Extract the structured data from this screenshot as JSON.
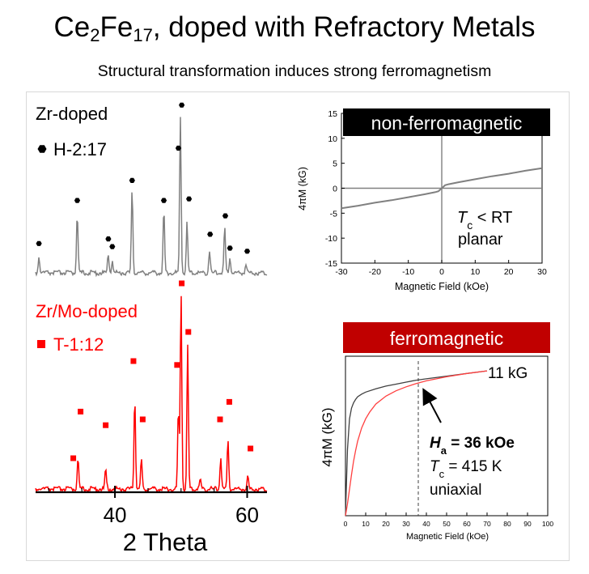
{
  "title": {
    "main_prefix": "Ce",
    "sub1": "2",
    "mid": "Fe",
    "sub2": "17",
    "suffix": ", doped with Refractory Metals"
  },
  "subtitle": "Structural transformation induces strong ferromagnetism",
  "chart_data": [
    {
      "type": "line",
      "panel": "xrd",
      "xlabel": "2 Theta",
      "xlim": [
        28,
        63
      ],
      "xticks": [
        40,
        60
      ],
      "minor_xticks": [
        30,
        35,
        45,
        50,
        55
      ],
      "series": [
        {
          "name": "Zr-doped",
          "color": "#808080",
          "legend_label": "H-2:17",
          "legend_marker": "black hexagon",
          "peaks": [
            {
              "x": 28.5,
              "h": 0.1
            },
            {
              "x": 34.3,
              "h": 0.39
            },
            {
              "x": 39.0,
              "h": 0.12
            },
            {
              "x": 39.6,
              "h": 0.08
            },
            {
              "x": 42.6,
              "h": 0.53
            },
            {
              "x": 47.4,
              "h": 0.4
            },
            {
              "x": 49.9,
              "h": 1.0
            },
            {
              "x": 50.9,
              "h": 0.32
            },
            {
              "x": 54.3,
              "h": 0.14
            },
            {
              "x": 56.6,
              "h": 0.29
            },
            {
              "x": 57.4,
              "h": 0.1
            },
            {
              "x": 59.8,
              "h": 0.06
            }
          ],
          "markers": [
            {
              "x": 28.5,
              "y": 0.18
            },
            {
              "x": 34.3,
              "y": 0.46
            },
            {
              "x": 39.0,
              "y": 0.21
            },
            {
              "x": 39.6,
              "y": 0.16
            },
            {
              "x": 42.6,
              "y": 0.59
            },
            {
              "x": 47.4,
              "y": 0.46
            },
            {
              "x": 49.6,
              "y": 0.8
            },
            {
              "x": 50.1,
              "y": 1.08
            },
            {
              "x": 51.2,
              "y": 0.47
            },
            {
              "x": 54.4,
              "y": 0.24
            },
            {
              "x": 56.7,
              "y": 0.36
            },
            {
              "x": 57.4,
              "y": 0.15
            },
            {
              "x": 60.0,
              "y": 0.13
            }
          ]
        },
        {
          "name": "Zr/Mo-doped",
          "color": "#ff0000",
          "legend_label": "T-1:12",
          "legend_marker": "red square",
          "peaks": [
            {
              "x": 34.4,
              "h": 0.16
            },
            {
              "x": 38.6,
              "h": 0.1
            },
            {
              "x": 43.0,
              "h": 0.47
            },
            {
              "x": 44.0,
              "h": 0.15
            },
            {
              "x": 49.6,
              "h": 0.4
            },
            {
              "x": 50.0,
              "h": 1.0
            },
            {
              "x": 51.0,
              "h": 0.72
            },
            {
              "x": 52.9,
              "h": 0.05
            },
            {
              "x": 56.0,
              "h": 0.16
            },
            {
              "x": 57.1,
              "h": 0.25
            },
            {
              "x": 60.1,
              "h": 0.06
            }
          ],
          "markers": [
            {
              "x": 33.7,
              "y": 0.15
            },
            {
              "x": 34.8,
              "y": 0.39
            },
            {
              "x": 38.6,
              "y": 0.32
            },
            {
              "x": 42.8,
              "y": 0.65
            },
            {
              "x": 44.2,
              "y": 0.35
            },
            {
              "x": 49.4,
              "y": 0.63
            },
            {
              "x": 50.1,
              "y": 1.05
            },
            {
              "x": 51.1,
              "y": 0.8
            },
            {
              "x": 55.9,
              "y": 0.35
            },
            {
              "x": 57.3,
              "y": 0.44
            },
            {
              "x": 60.5,
              "y": 0.2
            }
          ]
        }
      ]
    },
    {
      "type": "line",
      "panel": "mh-top",
      "banner": "non-ferromagnetic",
      "banner_color": "#000000",
      "xlabel": "Magnetic Field (kOe)",
      "ylabel": "4πM (kG)",
      "xlim": [
        -30,
        30
      ],
      "ylim": [
        -15,
        15
      ],
      "xticks": [
        -30,
        -20,
        -10,
        0,
        10,
        20,
        30
      ],
      "yticks": [
        -15,
        -10,
        -5,
        0,
        5,
        10,
        15
      ],
      "grid": false,
      "annotation_line1_italic": "T",
      "annotation_line1_sub": "c",
      "annotation_line1_rest": " < RT",
      "annotation_line2": "planar",
      "series": [
        {
          "color": "#808080",
          "x": [
            -30,
            -25,
            -20,
            -15,
            -10,
            -5,
            -2,
            -1,
            0,
            1,
            2,
            5,
            10,
            15,
            20,
            25,
            30
          ],
          "y": [
            -4.0,
            -3.5,
            -2.9,
            -2.4,
            -1.8,
            -1.2,
            -0.8,
            -0.6,
            0,
            0.6,
            0.8,
            1.2,
            1.8,
            2.4,
            2.9,
            3.5,
            4.0
          ]
        }
      ]
    },
    {
      "type": "line",
      "panel": "mh-bottom",
      "banner": "ferromagnetic",
      "banner_color": "#c00000",
      "xlabel": "Magnetic Field (kOe)",
      "ylabel": "4πM (kG)",
      "xlim": [
        0,
        100
      ],
      "ylim": [
        0,
        12
      ],
      "xticks": [
        0,
        10,
        20,
        30,
        40,
        50,
        60,
        70,
        80,
        90,
        100
      ],
      "grid": false,
      "dashed_x": 36,
      "end_label": "11 kG",
      "annotation_ha_italic": "H",
      "annotation_ha_sub": "a",
      "annotation_ha_rest": " = 36 kOe",
      "annotation_tc_italic": "T",
      "annotation_tc_sub": "c",
      "annotation_tc_rest": " = 415 K",
      "annotation_axis": "uniaxial",
      "series": [
        {
          "color": "#404040",
          "x": [
            0,
            1,
            2,
            3,
            4,
            5,
            6,
            8,
            10,
            15,
            20,
            25,
            30,
            35,
            40,
            50,
            60,
            70
          ],
          "y": [
            0.0,
            5.0,
            7.3,
            8.1,
            8.5,
            8.75,
            8.95,
            9.15,
            9.3,
            9.55,
            9.75,
            9.9,
            10.05,
            10.2,
            10.3,
            10.5,
            10.7,
            10.9
          ]
        },
        {
          "color": "#ff4040",
          "x": [
            0,
            1,
            2,
            3,
            4,
            5,
            6,
            8,
            10,
            12,
            15,
            20,
            25,
            30,
            35,
            40,
            50,
            60,
            70
          ],
          "y": [
            0.0,
            0.9,
            2.0,
            3.1,
            4.1,
            4.9,
            5.6,
            6.6,
            7.3,
            7.8,
            8.4,
            9.0,
            9.4,
            9.7,
            9.95,
            10.15,
            10.45,
            10.7,
            10.9
          ]
        }
      ]
    }
  ]
}
